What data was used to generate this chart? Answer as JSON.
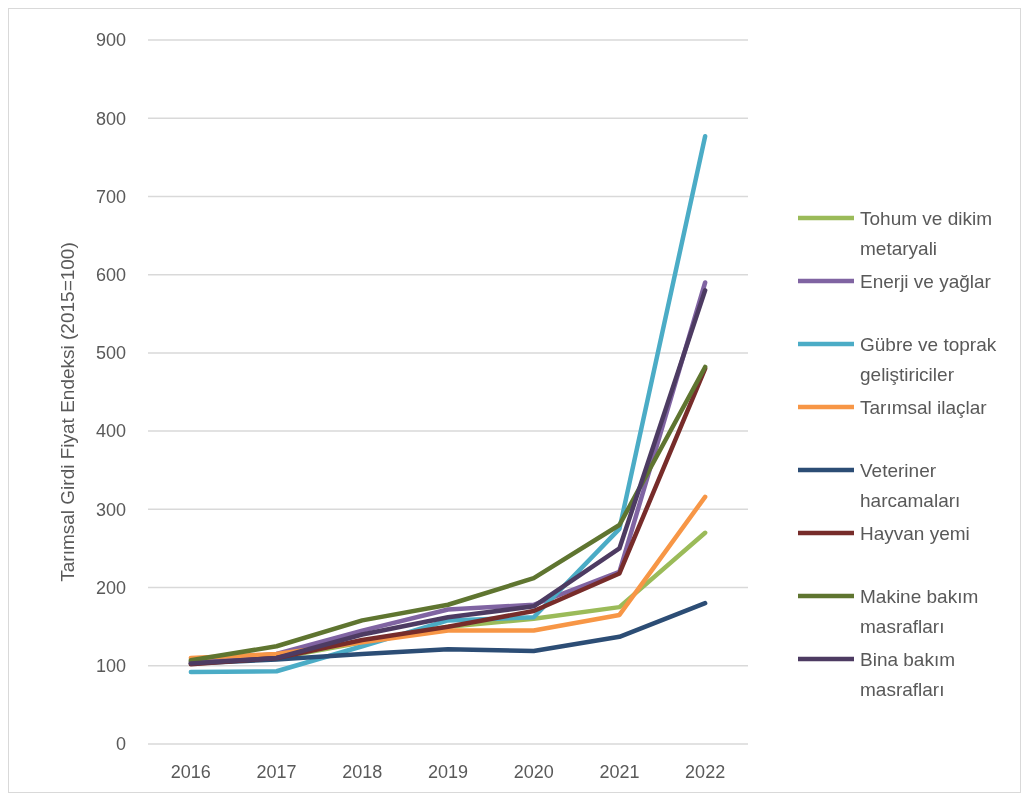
{
  "chart_data": {
    "type": "line",
    "ylabel": "Tarımsal Girdi Fiyat Endeksi (2015=100)",
    "categories": [
      "2016",
      "2017",
      "2018",
      "2019",
      "2020",
      "2021",
      "2022"
    ],
    "series": [
      {
        "name": "Tohum ve dikim metaryali",
        "color": "#9bbb59",
        "values": [
          105,
          110,
          130,
          150,
          160,
          175,
          270
        ]
      },
      {
        "name": "Enerji ve yağlar",
        "color": "#8064a2",
        "values": [
          105,
          115,
          145,
          172,
          178,
          220,
          590
        ]
      },
      {
        "name": "Gübre ve toprak geliştiriciler",
        "color": "#4bacc6",
        "values": [
          92,
          93,
          125,
          158,
          162,
          275,
          777
        ]
      },
      {
        "name": "Tarımsal ilaçlar",
        "color": "#f79646",
        "values": [
          110,
          115,
          130,
          145,
          145,
          165,
          316
        ]
      },
      {
        "name": "Veteriner harcamaları",
        "color": "#2c4d75",
        "values": [
          103,
          108,
          115,
          121,
          119,
          137,
          180
        ]
      },
      {
        "name": "Hayvan yemi",
        "color": "#772c2a",
        "values": [
          102,
          110,
          133,
          150,
          170,
          218,
          480
        ]
      },
      {
        "name": "Makine bakım masrafları",
        "color": "#5f7530",
        "values": [
          107,
          125,
          158,
          178,
          212,
          280,
          482
        ]
      },
      {
        "name": "Bina bakım masrafları",
        "color": "#4d3b62",
        "values": [
          103,
          110,
          140,
          162,
          176,
          250,
          580
        ]
      }
    ],
    "ylim": [
      0,
      900
    ],
    "yticks": [
      0,
      100,
      200,
      300,
      400,
      500,
      600,
      700,
      800,
      900
    ],
    "grid": "y",
    "legend": "right",
    "marker": "none",
    "line_style": "solid"
  }
}
